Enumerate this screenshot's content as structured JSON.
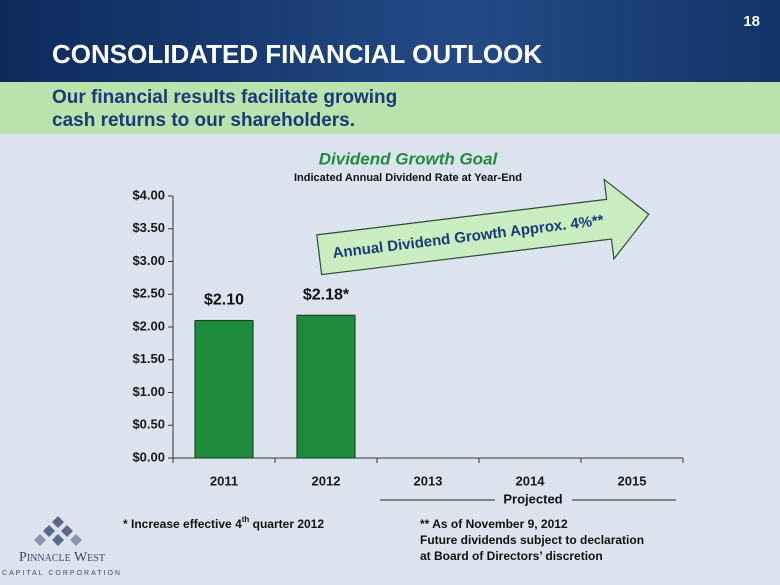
{
  "slide": {
    "number": "18",
    "title": "CONSOLIDATED FINANCIAL OUTLOOK",
    "subtitle": [
      "Our financial results facilitate growing",
      "cash returns to our shareholders."
    ],
    "footnote_left": [
      "* Increase effective 4",
      "th",
      " quarter 2012"
    ],
    "footnote_right": [
      "** As of November 9, 2012",
      "Future dividends subject to declaration",
      "at Board of Directors’ discretion"
    ],
    "logo": {
      "name": "Pinnacle West",
      "tagline": "CAPITAL CORPORATION"
    }
  },
  "chart_data": {
    "type": "bar",
    "title": "Dividend Growth Goal",
    "subtitle": "Indicated Annual Dividend Rate at Year-End",
    "categories": [
      "2011",
      "2012",
      "2013",
      "2014",
      "2015"
    ],
    "values": [
      2.1,
      2.18,
      null,
      null,
      null
    ],
    "value_labels": [
      "$2.10",
      "$2.18*",
      null,
      null,
      null
    ],
    "color": "#1e8a3c",
    "ylim": [
      0,
      4
    ],
    "yticks": [
      {
        "value": 0,
        "label": "$0.00"
      },
      {
        "value": 0.5,
        "label": "$0.50"
      },
      {
        "value": 1,
        "label": "$1.00"
      },
      {
        "value": 1.5,
        "label": "$1.50"
      },
      {
        "value": 2,
        "label": "$2.00"
      },
      {
        "value": 2.5,
        "label": "$2.50"
      },
      {
        "value": 3,
        "label": "$3.00"
      },
      {
        "value": 3.5,
        "label": "$3.50"
      },
      {
        "value": 4,
        "label": "$4.00"
      }
    ],
    "annotation": "Annual Dividend Growth Approx. 4%**",
    "group_label": "Projected"
  }
}
